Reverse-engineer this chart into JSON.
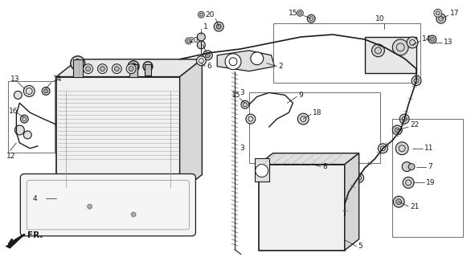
{
  "background_color": "#ffffff",
  "line_color": "#1a1a1a",
  "figsize": [
    5.86,
    3.2
  ],
  "dpi": 100,
  "gray": "#888888",
  "light_gray": "#cccccc"
}
